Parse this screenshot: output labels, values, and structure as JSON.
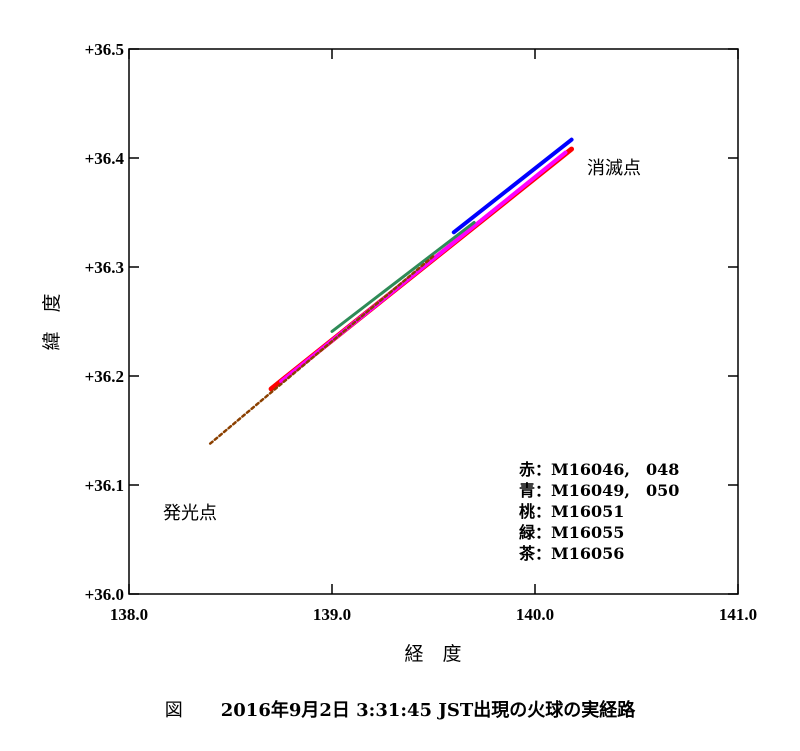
{
  "chart_data": {
    "type": "line",
    "title": "",
    "xlabel": "経　度",
    "ylabel": "緯　度",
    "xlim": [
      138.0,
      141.0
    ],
    "ylim": [
      36.0,
      36.5
    ],
    "x_ticks": [
      "138.0",
      "139.0",
      "140.0",
      "141.0"
    ],
    "y_ticks": [
      "+36.0",
      "+36.1",
      "+36.2",
      "+36.3",
      "+36.4",
      "+36.5"
    ],
    "grid": false,
    "series": [
      {
        "legend": "赤：M16046,　048",
        "color": "#ff0000",
        "x": [
          138.7,
          140.18
        ],
        "y": [
          36.19,
          36.41
        ]
      },
      {
        "legend": "青：M16049,　050",
        "color": "#0000ff",
        "x": [
          139.6,
          140.18
        ],
        "y": [
          36.33,
          36.415
        ]
      },
      {
        "legend": "桃：M16051",
        "color": "#ff00ff",
        "x": [
          138.75,
          140.15
        ],
        "y": [
          36.195,
          36.405
        ]
      },
      {
        "legend": "緑：M16055",
        "color": "#2e8b57",
        "x": [
          139.0,
          139.7
        ],
        "y": [
          36.24,
          36.34
        ]
      },
      {
        "legend": "茶：M16056",
        "color": "#8b4000",
        "x": [
          138.4,
          139.5
        ],
        "y": [
          36.138,
          36.31
        ]
      }
    ],
    "annotations": [
      {
        "text": "消滅点",
        "x": 140.25,
        "y": 36.405
      },
      {
        "text": "発光点",
        "x": 138.15,
        "y": 36.065
      }
    ],
    "legend_position": "bottom-right"
  },
  "caption": {
    "prefix": "図",
    "text": "2016年9月2日 3:31:45 JST出現の火球の実経路"
  }
}
